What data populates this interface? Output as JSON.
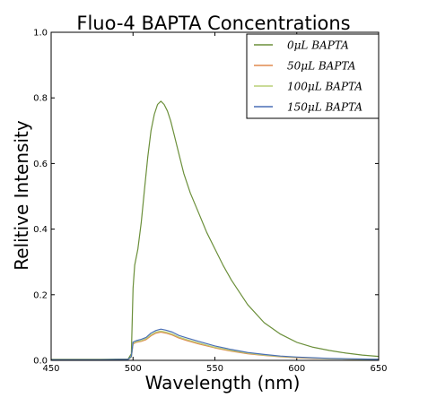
{
  "chart_data": {
    "type": "line",
    "title": "Fluo-4 BAPTA Concentrations",
    "xlabel": "Wavelength (nm)",
    "ylabel": "Relitive Intensity",
    "xlim": [
      450,
      650
    ],
    "ylim": [
      0,
      1.0
    ],
    "xticks": [
      "450",
      "500",
      "550",
      "600",
      "650"
    ],
    "yticks": [
      "0.0",
      "0.2",
      "0.4",
      "0.6",
      "0.8",
      "1.0"
    ],
    "grid": false,
    "legend_position": "top-right",
    "series": [
      {
        "name": "0μL BAPTA",
        "color": "#6b8f3a",
        "x": [
          450,
          480,
          497,
          499,
          500,
          501,
          503,
          505,
          507,
          509,
          511,
          513,
          515,
          517,
          519,
          521,
          523,
          525,
          528,
          531,
          535,
          540,
          545,
          550,
          555,
          560,
          570,
          580,
          590,
          600,
          610,
          620,
          630,
          640,
          650
        ],
        "y": [
          0.003,
          0.003,
          0.004,
          0.02,
          0.22,
          0.29,
          0.34,
          0.42,
          0.52,
          0.62,
          0.7,
          0.75,
          0.78,
          0.79,
          0.78,
          0.76,
          0.73,
          0.69,
          0.63,
          0.57,
          0.51,
          0.45,
          0.39,
          0.34,
          0.29,
          0.245,
          0.17,
          0.115,
          0.08,
          0.055,
          0.04,
          0.03,
          0.022,
          0.016,
          0.012
        ]
      },
      {
        "name": "50μL BAPTA",
        "color": "#e08a4f",
        "x": [
          450,
          480,
          497,
          499,
          500,
          502,
          505,
          508,
          511,
          514,
          517,
          520,
          524,
          528,
          533,
          540,
          550,
          560,
          570,
          580,
          590,
          600,
          610,
          620,
          630,
          640,
          650
        ],
        "y": [
          0.002,
          0.002,
          0.003,
          0.01,
          0.05,
          0.055,
          0.058,
          0.063,
          0.075,
          0.083,
          0.086,
          0.083,
          0.077,
          0.068,
          0.06,
          0.05,
          0.038,
          0.028,
          0.02,
          0.015,
          0.011,
          0.008,
          0.006,
          0.005,
          0.004,
          0.003,
          0.003
        ]
      },
      {
        "name": "100μL BAPTA",
        "color": "#b9cf77",
        "x": [
          450,
          480,
          497,
          499,
          500,
          502,
          505,
          508,
          511,
          514,
          517,
          520,
          524,
          528,
          533,
          540,
          550,
          560,
          570,
          580,
          590,
          600,
          610,
          620,
          630,
          640,
          650
        ],
        "y": [
          0.002,
          0.002,
          0.003,
          0.01,
          0.052,
          0.057,
          0.06,
          0.066,
          0.078,
          0.086,
          0.089,
          0.086,
          0.08,
          0.071,
          0.063,
          0.053,
          0.04,
          0.03,
          0.022,
          0.016,
          0.012,
          0.009,
          0.007,
          0.005,
          0.004,
          0.003,
          0.003
        ]
      },
      {
        "name": "150μL BAPTA",
        "color": "#4a6fb5",
        "x": [
          450,
          480,
          497,
          499,
          500,
          502,
          505,
          508,
          511,
          514,
          517,
          520,
          524,
          528,
          533,
          540,
          550,
          560,
          570,
          580,
          590,
          600,
          610,
          620,
          630,
          640,
          650
        ],
        "y": [
          0.002,
          0.002,
          0.003,
          0.012,
          0.056,
          0.06,
          0.064,
          0.07,
          0.083,
          0.091,
          0.095,
          0.092,
          0.086,
          0.076,
          0.068,
          0.058,
          0.044,
          0.033,
          0.024,
          0.018,
          0.013,
          0.01,
          0.008,
          0.006,
          0.005,
          0.004,
          0.003
        ]
      }
    ]
  }
}
